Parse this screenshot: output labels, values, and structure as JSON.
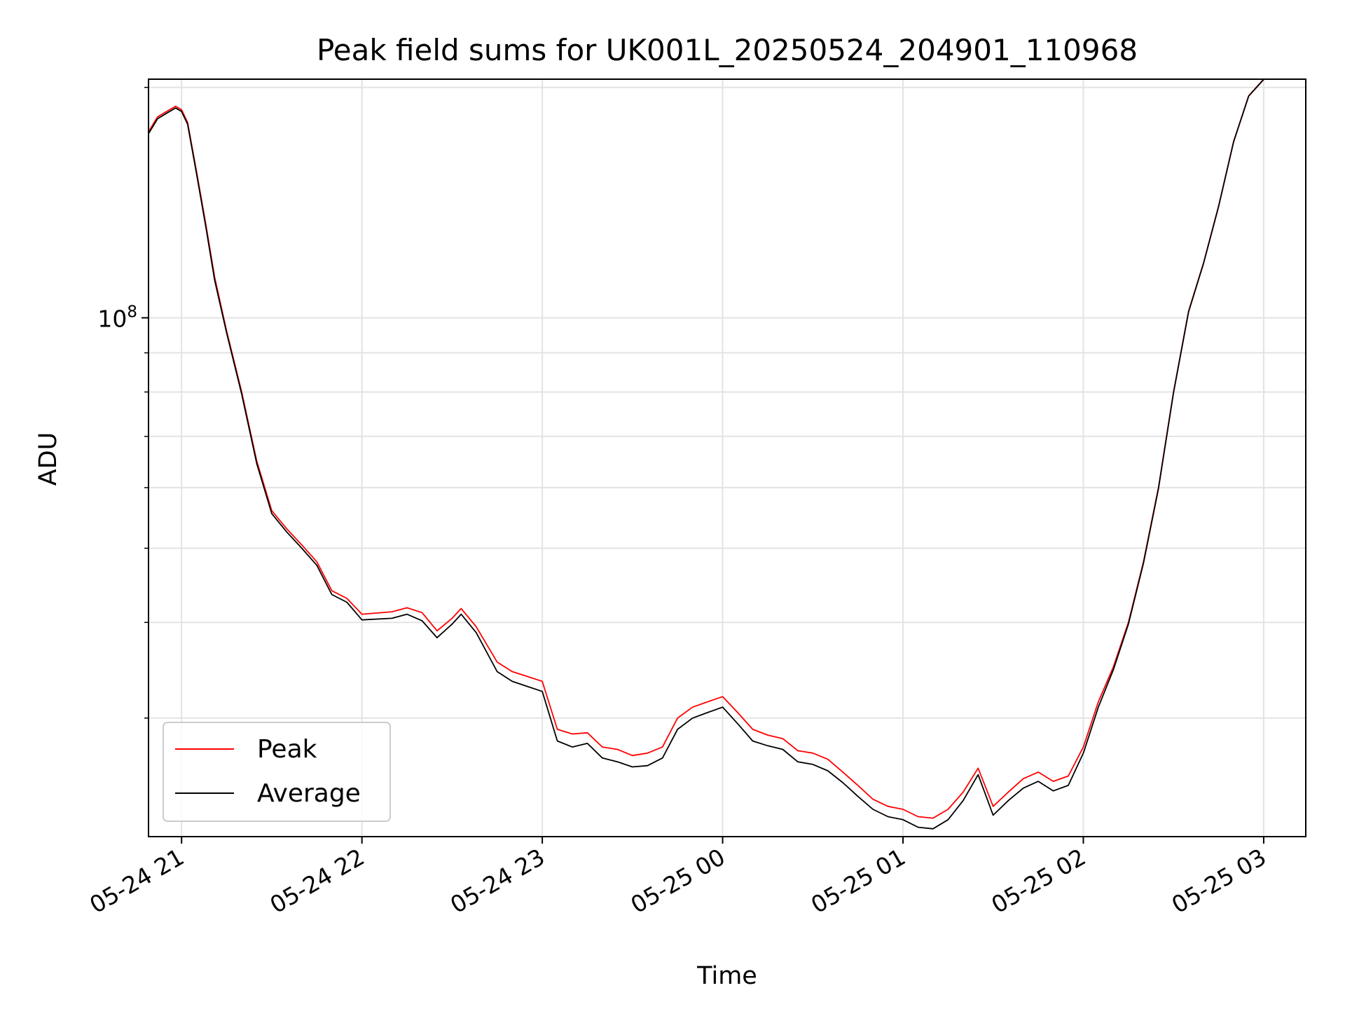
{
  "chart_data": {
    "type": "line",
    "title": "Peak field sums for UK001L_20250524_204901_110968",
    "xlabel": "Time",
    "ylabel": "ADU",
    "yscale": "log",
    "xlim": [
      "2025-05-24 20:49",
      "2025-05-25 03:14"
    ],
    "ylim": [
      21000000,
      205000000
    ],
    "x_ticks": [
      {
        "value": "2025-05-24 21:00",
        "label": "05-24 21"
      },
      {
        "value": "2025-05-24 22:00",
        "label": "05-24 22"
      },
      {
        "value": "2025-05-24 23:00",
        "label": "05-24 23"
      },
      {
        "value": "2025-05-25 00:00",
        "label": "05-25 00"
      },
      {
        "value": "2025-05-25 01:00",
        "label": "05-25 01"
      },
      {
        "value": "2025-05-25 02:00",
        "label": "05-25 02"
      },
      {
        "value": "2025-05-25 03:00",
        "label": "05-25 03"
      }
    ],
    "y_ticks": [
      {
        "value": 100000000,
        "label_base": "10",
        "label_exp": "8"
      }
    ],
    "y_minor_ticks": [
      30000000,
      40000000,
      50000000,
      60000000,
      70000000,
      80000000,
      90000000,
      200000000
    ],
    "grid": true,
    "legend_position": "lower-left",
    "series": [
      {
        "name": "Peak",
        "color": "#ff0000",
        "points": [
          [
            "2025-05-24 20:49",
            175000000
          ],
          [
            "2025-05-24 20:52",
            183000000
          ],
          [
            "2025-05-24 20:55",
            186000000
          ],
          [
            "2025-05-24 20:58",
            189000000
          ],
          [
            "2025-05-24 21:00",
            187000000
          ],
          [
            "2025-05-24 21:02",
            180000000
          ],
          [
            "2025-05-24 21:05",
            155000000
          ],
          [
            "2025-05-24 21:08",
            133000000
          ],
          [
            "2025-05-24 21:11",
            113000000
          ],
          [
            "2025-05-24 21:15",
            96000000
          ],
          [
            "2025-05-24 21:20",
            80000000
          ],
          [
            "2025-05-24 21:25",
            65000000
          ],
          [
            "2025-05-24 21:30",
            56000000
          ],
          [
            "2025-05-24 21:35",
            53000000
          ],
          [
            "2025-05-24 21:40",
            50500000
          ],
          [
            "2025-05-24 21:45",
            48000000
          ],
          [
            "2025-05-24 21:50",
            44000000
          ],
          [
            "2025-05-24 21:55",
            43000000
          ],
          [
            "2025-05-24 22:00",
            41000000
          ],
          [
            "2025-05-24 22:10",
            41300000
          ],
          [
            "2025-05-24 22:15",
            41800000
          ],
          [
            "2025-05-24 22:20",
            41200000
          ],
          [
            "2025-05-24 22:25",
            39000000
          ],
          [
            "2025-05-24 22:30",
            40500000
          ],
          [
            "2025-05-24 22:33",
            41700000
          ],
          [
            "2025-05-24 22:38",
            39500000
          ],
          [
            "2025-05-24 22:45",
            35500000
          ],
          [
            "2025-05-24 22:50",
            34500000
          ],
          [
            "2025-05-24 22:55",
            34000000
          ],
          [
            "2025-05-24 23:00",
            33500000
          ],
          [
            "2025-05-24 23:05",
            29000000
          ],
          [
            "2025-05-24 23:10",
            28600000
          ],
          [
            "2025-05-24 23:15",
            28700000
          ],
          [
            "2025-05-24 23:20",
            27500000
          ],
          [
            "2025-05-24 23:25",
            27300000
          ],
          [
            "2025-05-24 23:30",
            26800000
          ],
          [
            "2025-05-24 23:35",
            27000000
          ],
          [
            "2025-05-24 23:40",
            27500000
          ],
          [
            "2025-05-24 23:45",
            30000000
          ],
          [
            "2025-05-24 23:50",
            31000000
          ],
          [
            "2025-05-24 23:55",
            31500000
          ],
          [
            "2025-05-25 00:00",
            32000000
          ],
          [
            "2025-05-25 00:05",
            30500000
          ],
          [
            "2025-05-25 00:10",
            29000000
          ],
          [
            "2025-05-25 00:15",
            28500000
          ],
          [
            "2025-05-25 00:20",
            28200000
          ],
          [
            "2025-05-25 00:25",
            27200000
          ],
          [
            "2025-05-25 00:30",
            27000000
          ],
          [
            "2025-05-25 00:35",
            26500000
          ],
          [
            "2025-05-25 00:40",
            25500000
          ],
          [
            "2025-05-25 00:45",
            24500000
          ],
          [
            "2025-05-25 00:50",
            23500000
          ],
          [
            "2025-05-25 00:55",
            23000000
          ],
          [
            "2025-05-25 01:00",
            22800000
          ],
          [
            "2025-05-25 01:05",
            22300000
          ],
          [
            "2025-05-25 01:10",
            22200000
          ],
          [
            "2025-05-25 01:15",
            22800000
          ],
          [
            "2025-05-25 01:20",
            24000000
          ],
          [
            "2025-05-25 01:25",
            25800000
          ],
          [
            "2025-05-25 01:30",
            23000000
          ],
          [
            "2025-05-25 01:35",
            24000000
          ],
          [
            "2025-05-25 01:40",
            25000000
          ],
          [
            "2025-05-25 01:45",
            25500000
          ],
          [
            "2025-05-25 01:50",
            24800000
          ],
          [
            "2025-05-25 01:55",
            25200000
          ],
          [
            "2025-05-25 02:00",
            27500000
          ],
          [
            "2025-05-25 02:05",
            31500000
          ],
          [
            "2025-05-25 02:10",
            35000000
          ],
          [
            "2025-05-25 02:15",
            40000000
          ],
          [
            "2025-05-25 02:20",
            48000000
          ],
          [
            "2025-05-25 02:25",
            60000000
          ],
          [
            "2025-05-25 02:30",
            80000000
          ],
          [
            "2025-05-25 02:35",
            102000000
          ],
          [
            "2025-05-25 02:40",
            118000000
          ],
          [
            "2025-05-25 02:45",
            140000000
          ],
          [
            "2025-05-25 02:50",
            170000000
          ],
          [
            "2025-05-25 02:55",
            195000000
          ],
          [
            "2025-05-25 03:00",
            205000000
          ]
        ]
      },
      {
        "name": "Average",
        "color": "#000000",
        "points": [
          [
            "2025-05-24 20:49",
            174000000
          ],
          [
            "2025-05-24 20:52",
            182000000
          ],
          [
            "2025-05-24 20:55",
            185000000
          ],
          [
            "2025-05-24 20:58",
            188000000
          ],
          [
            "2025-05-24 21:00",
            186000000
          ],
          [
            "2025-05-24 21:02",
            179000000
          ],
          [
            "2025-05-24 21:05",
            154000000
          ],
          [
            "2025-05-24 21:08",
            132000000
          ],
          [
            "2025-05-24 21:11",
            112000000
          ],
          [
            "2025-05-24 21:15",
            95500000
          ],
          [
            "2025-05-24 21:20",
            79500000
          ],
          [
            "2025-05-24 21:25",
            64500000
          ],
          [
            "2025-05-24 21:30",
            55500000
          ],
          [
            "2025-05-24 21:35",
            52500000
          ],
          [
            "2025-05-24 21:40",
            50000000
          ],
          [
            "2025-05-24 21:45",
            47500000
          ],
          [
            "2025-05-24 21:50",
            43500000
          ],
          [
            "2025-05-24 21:55",
            42500000
          ],
          [
            "2025-05-24 22:00",
            40300000
          ],
          [
            "2025-05-24 22:10",
            40500000
          ],
          [
            "2025-05-24 22:15",
            41000000
          ],
          [
            "2025-05-24 22:20",
            40200000
          ],
          [
            "2025-05-24 22:25",
            38200000
          ],
          [
            "2025-05-24 22:30",
            39800000
          ],
          [
            "2025-05-24 22:33",
            41000000
          ],
          [
            "2025-05-24 22:38",
            38800000
          ],
          [
            "2025-05-24 22:45",
            34500000
          ],
          [
            "2025-05-24 22:50",
            33500000
          ],
          [
            "2025-05-24 22:55",
            33000000
          ],
          [
            "2025-05-24 23:00",
            32500000
          ],
          [
            "2025-05-24 23:05",
            28000000
          ],
          [
            "2025-05-24 23:10",
            27500000
          ],
          [
            "2025-05-24 23:15",
            27800000
          ],
          [
            "2025-05-24 23:20",
            26600000
          ],
          [
            "2025-05-24 23:25",
            26300000
          ],
          [
            "2025-05-24 23:30",
            25900000
          ],
          [
            "2025-05-24 23:35",
            26000000
          ],
          [
            "2025-05-24 23:40",
            26600000
          ],
          [
            "2025-05-24 23:45",
            29000000
          ],
          [
            "2025-05-24 23:50",
            30000000
          ],
          [
            "2025-05-24 23:55",
            30500000
          ],
          [
            "2025-05-25 00:00",
            31000000
          ],
          [
            "2025-05-25 00:05",
            29500000
          ],
          [
            "2025-05-25 00:10",
            28000000
          ],
          [
            "2025-05-25 00:15",
            27600000
          ],
          [
            "2025-05-25 00:20",
            27300000
          ],
          [
            "2025-05-25 00:25",
            26300000
          ],
          [
            "2025-05-25 00:30",
            26100000
          ],
          [
            "2025-05-25 00:35",
            25600000
          ],
          [
            "2025-05-25 00:40",
            24700000
          ],
          [
            "2025-05-25 00:45",
            23700000
          ],
          [
            "2025-05-25 00:50",
            22800000
          ],
          [
            "2025-05-25 00:55",
            22300000
          ],
          [
            "2025-05-25 01:00",
            22100000
          ],
          [
            "2025-05-25 01:05",
            21600000
          ],
          [
            "2025-05-25 01:10",
            21500000
          ],
          [
            "2025-05-25 01:15",
            22100000
          ],
          [
            "2025-05-25 01:20",
            23400000
          ],
          [
            "2025-05-25 01:25",
            25300000
          ],
          [
            "2025-05-25 01:30",
            22400000
          ],
          [
            "2025-05-25 01:35",
            23400000
          ],
          [
            "2025-05-25 01:40",
            24300000
          ],
          [
            "2025-05-25 01:45",
            24800000
          ],
          [
            "2025-05-25 01:50",
            24100000
          ],
          [
            "2025-05-25 01:55",
            24500000
          ],
          [
            "2025-05-25 02:00",
            27000000
          ],
          [
            "2025-05-25 02:05",
            31000000
          ],
          [
            "2025-05-25 02:10",
            34700000
          ],
          [
            "2025-05-25 02:15",
            39800000
          ],
          [
            "2025-05-25 02:20",
            47800000
          ],
          [
            "2025-05-25 02:25",
            59800000
          ],
          [
            "2025-05-25 02:30",
            79800000
          ],
          [
            "2025-05-25 02:35",
            101800000
          ],
          [
            "2025-05-25 02:40",
            117800000
          ],
          [
            "2025-05-25 02:45",
            139800000
          ],
          [
            "2025-05-25 02:50",
            169800000
          ],
          [
            "2025-05-25 02:55",
            194800000
          ],
          [
            "2025-05-25 03:00",
            204800000
          ]
        ]
      }
    ]
  }
}
